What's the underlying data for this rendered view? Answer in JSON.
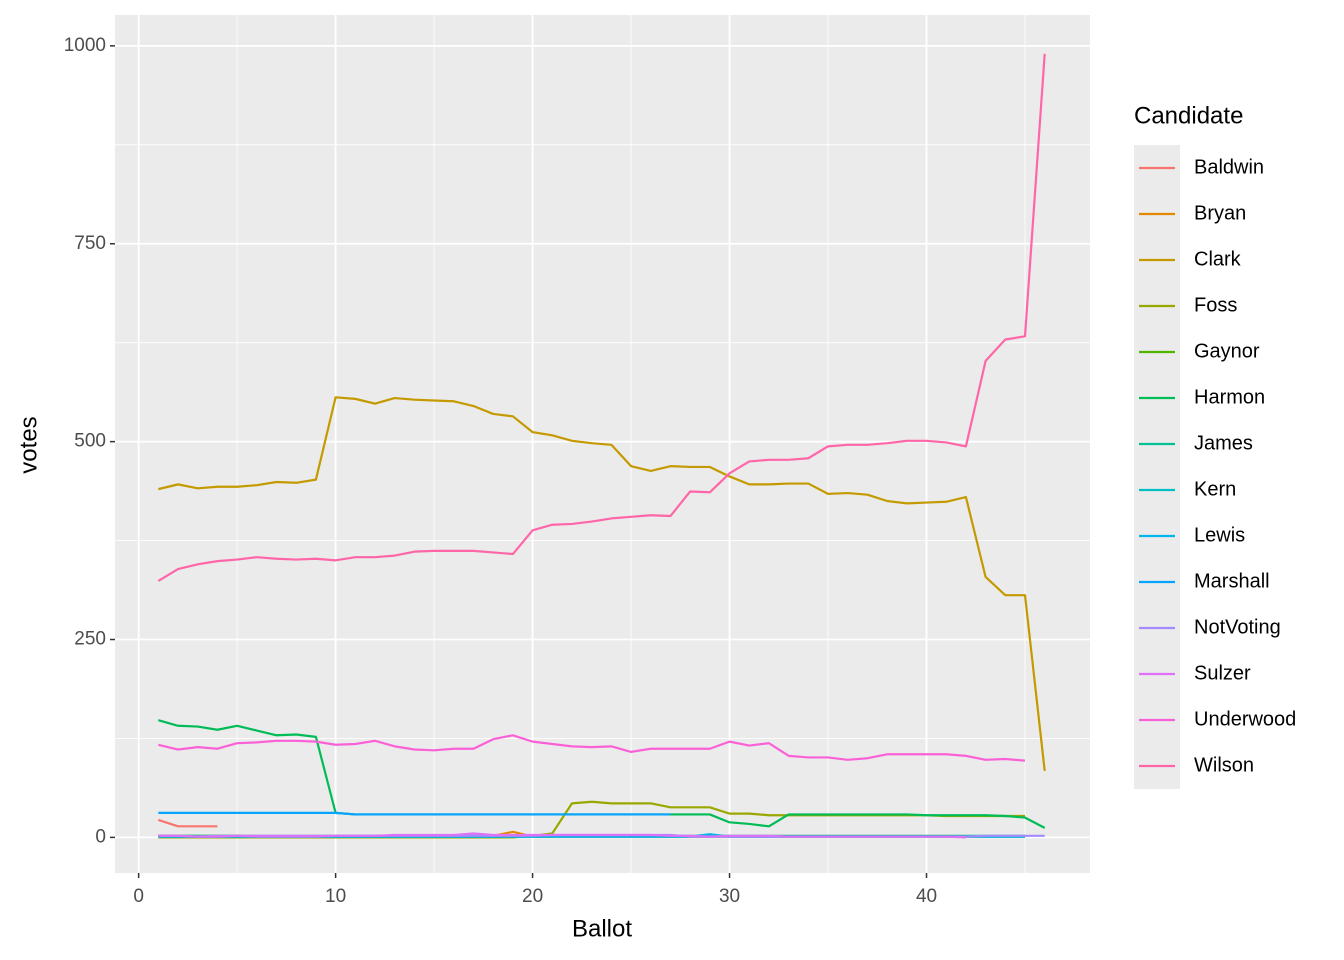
{
  "chart_data": {
    "type": "line",
    "x_label": "Ballot",
    "y_label": "votes",
    "legend_title": "Candidate",
    "legend_position": "right",
    "grid": true,
    "xlim": [
      -1.2,
      48.3
    ],
    "xticks": [
      0,
      10,
      20,
      30,
      40
    ],
    "ylim": [
      -45,
      1039
    ],
    "yticks": [
      0,
      250,
      500,
      750,
      1000
    ],
    "x": [
      1,
      2,
      3,
      4,
      5,
      6,
      7,
      8,
      9,
      10,
      11,
      12,
      13,
      14,
      15,
      16,
      17,
      18,
      19,
      20,
      21,
      22,
      23,
      24,
      25,
      26,
      27,
      28,
      29,
      30,
      31,
      32,
      33,
      34,
      35,
      36,
      37,
      38,
      39,
      40,
      41,
      42,
      43,
      44,
      45,
      46
    ],
    "series": [
      {
        "name": "Baldwin",
        "color": "#F8766D",
        "values": [
          22,
          14,
          14,
          14,
          null,
          null,
          null,
          null,
          null,
          null,
          null,
          null,
          null,
          null,
          null,
          null,
          null,
          null,
          null,
          null,
          null,
          null,
          null,
          null,
          null,
          null,
          null,
          null,
          null,
          null,
          null,
          null,
          null,
          null,
          null,
          null,
          null,
          null,
          null,
          null,
          null,
          null,
          null,
          null,
          null,
          null
        ]
      },
      {
        "name": "Bryan",
        "color": "#E38900",
        "values": [
          1,
          1,
          1,
          1,
          1,
          1,
          1,
          1,
          1,
          1,
          1,
          1,
          1,
          1,
          1,
          1,
          1,
          2,
          7,
          1,
          1,
          1,
          1,
          1,
          1,
          1,
          1,
          1,
          1,
          1,
          1,
          1,
          1,
          1,
          1,
          1,
          1,
          1,
          1,
          1,
          1,
          1,
          1,
          1,
          1,
          null
        ]
      },
      {
        "name": "Clark",
        "color": "#C49A00",
        "values": [
          440,
          446,
          441,
          443,
          443,
          445,
          449,
          448,
          452,
          556,
          554,
          548,
          555,
          553,
          552,
          551,
          545,
          535,
          532,
          512,
          508,
          501,
          498,
          496,
          469,
          463,
          469,
          468,
          468,
          456,
          446,
          446,
          447,
          447,
          434,
          435,
          433,
          425,
          422,
          423,
          424,
          430,
          329,
          306,
          306,
          84
        ]
      },
      {
        "name": "Foss",
        "color": "#99A800",
        "values": [
          0,
          0,
          0,
          0,
          0,
          0,
          0,
          0,
          0,
          0,
          0,
          0,
          0,
          0,
          0,
          0,
          0,
          0,
          0,
          2,
          5,
          43,
          45,
          43,
          43,
          43,
          38,
          38,
          38,
          30,
          30,
          28,
          28,
          28,
          28,
          28,
          28,
          28,
          28,
          28,
          27,
          27,
          27,
          27,
          27,
          null
        ]
      },
      {
        "name": "Gaynor",
        "color": "#53B400",
        "values": [
          2,
          2,
          2,
          2,
          2,
          1,
          1,
          1,
          1,
          1,
          1,
          1,
          1,
          1,
          1,
          1,
          1,
          1,
          1,
          1,
          1,
          null,
          null,
          null,
          null,
          null,
          null,
          null,
          null,
          null,
          null,
          null,
          null,
          null,
          null,
          null,
          null,
          null,
          null,
          null,
          null,
          null,
          null,
          null,
          null,
          null
        ]
      },
      {
        "name": "Harmon",
        "color": "#00BC56",
        "values": [
          148,
          141,
          140,
          136,
          141,
          135,
          129,
          130,
          127,
          31,
          29,
          29,
          29,
          29,
          29,
          29,
          29,
          29,
          29,
          29,
          29,
          29,
          29,
          29,
          29,
          29,
          29,
          29,
          29,
          19,
          17,
          14,
          29,
          29,
          29,
          29,
          29,
          29,
          29,
          28,
          28,
          28,
          28,
          27,
          25,
          12
        ]
      },
      {
        "name": "James",
        "color": "#00C094",
        "values": [
          2,
          2,
          2,
          2,
          2,
          2,
          2,
          2,
          2,
          2,
          2,
          2,
          2,
          2,
          2,
          2,
          2,
          2,
          2,
          2,
          2,
          2,
          2,
          2,
          2,
          2,
          2,
          2,
          2,
          2,
          2,
          2,
          2,
          2,
          2,
          2,
          2,
          2,
          2,
          2,
          2,
          2,
          2,
          2,
          2,
          null
        ]
      },
      {
        "name": "Kern",
        "color": "#00BFC4",
        "values": [
          1,
          1,
          1,
          1,
          1,
          1,
          1,
          1,
          1,
          1,
          1,
          1,
          1,
          1,
          1,
          1,
          1,
          1,
          1,
          1,
          1,
          1,
          1,
          1,
          1,
          1,
          1,
          1,
          1,
          1,
          1,
          1,
          1,
          1,
          1,
          1,
          1,
          1,
          1,
          1,
          1,
          1,
          1,
          1,
          1,
          null
        ]
      },
      {
        "name": "Lewis",
        "color": "#00B6EB",
        "values": [
          1,
          1,
          1,
          1,
          1,
          1,
          1,
          1,
          1,
          1,
          1,
          1,
          1,
          1,
          1,
          1,
          1,
          1,
          1,
          1,
          1,
          1,
          1,
          1,
          1,
          1,
          1,
          1,
          4,
          1,
          1,
          1,
          1,
          1,
          1,
          1,
          1,
          1,
          1,
          1,
          1,
          1,
          1,
          1,
          1,
          null
        ]
      },
      {
        "name": "Marshall",
        "color": "#06A4FF",
        "values": [
          31,
          31,
          31,
          31,
          31,
          31,
          31,
          31,
          31,
          31,
          29,
          29,
          29,
          29,
          29,
          29,
          29,
          29,
          29,
          29,
          29,
          29,
          29,
          29,
          29,
          29,
          29,
          null,
          null,
          null,
          null,
          null,
          null,
          null,
          null,
          null,
          null,
          null,
          null,
          null,
          null,
          null,
          null,
          null,
          null,
          null
        ]
      },
      {
        "name": "NotVoting",
        "color": "#A58AFF",
        "values": [
          2,
          2,
          1,
          2,
          2,
          1,
          1,
          1,
          1,
          2,
          2,
          2,
          2,
          2,
          2,
          2,
          2,
          2,
          2,
          2,
          3,
          3,
          3,
          3,
          3,
          3,
          3,
          1,
          1,
          1,
          1,
          1,
          1,
          1,
          1,
          1,
          1,
          1,
          1,
          1,
          1,
          1,
          2,
          2,
          2,
          2
        ]
      },
      {
        "name": "Sulzer",
        "color": "#DF70F8",
        "values": [
          2,
          2,
          1,
          1,
          2,
          2,
          2,
          2,
          2,
          2,
          2,
          2,
          3,
          3,
          3,
          3,
          5,
          3,
          3,
          3,
          3,
          3,
          3,
          3,
          3,
          3,
          2,
          2,
          1,
          2,
          2,
          2,
          1,
          1,
          1,
          1,
          1,
          1,
          1,
          1,
          1,
          0,
          null,
          null,
          null,
          null
        ]
      },
      {
        "name": "Underwood",
        "color": "#FB61D7",
        "values": [
          117,
          111,
          114,
          112,
          119,
          120,
          122,
          122,
          121,
          117,
          118,
          122,
          115,
          111,
          110,
          112,
          112,
          124,
          129,
          121,
          118,
          115,
          114,
          115,
          108,
          112,
          112,
          112,
          112,
          121,
          116,
          119,
          103,
          101,
          101,
          98,
          100,
          105,
          105,
          105,
          105,
          103,
          98,
          99,
          97,
          null
        ]
      },
      {
        "name": "Wilson",
        "color": "#FF66A8",
        "values": [
          324,
          339,
          345,
          349,
          351,
          354,
          352,
          351,
          352,
          350,
          354,
          354,
          356,
          361,
          362,
          362,
          362,
          360,
          358,
          388,
          395,
          396,
          399,
          403,
          405,
          407,
          406,
          437,
          436,
          460,
          475,
          477,
          477,
          479,
          494,
          496,
          496,
          498,
          501,
          501,
          499,
          494,
          602,
          629,
          633,
          990
        ]
      }
    ]
  }
}
